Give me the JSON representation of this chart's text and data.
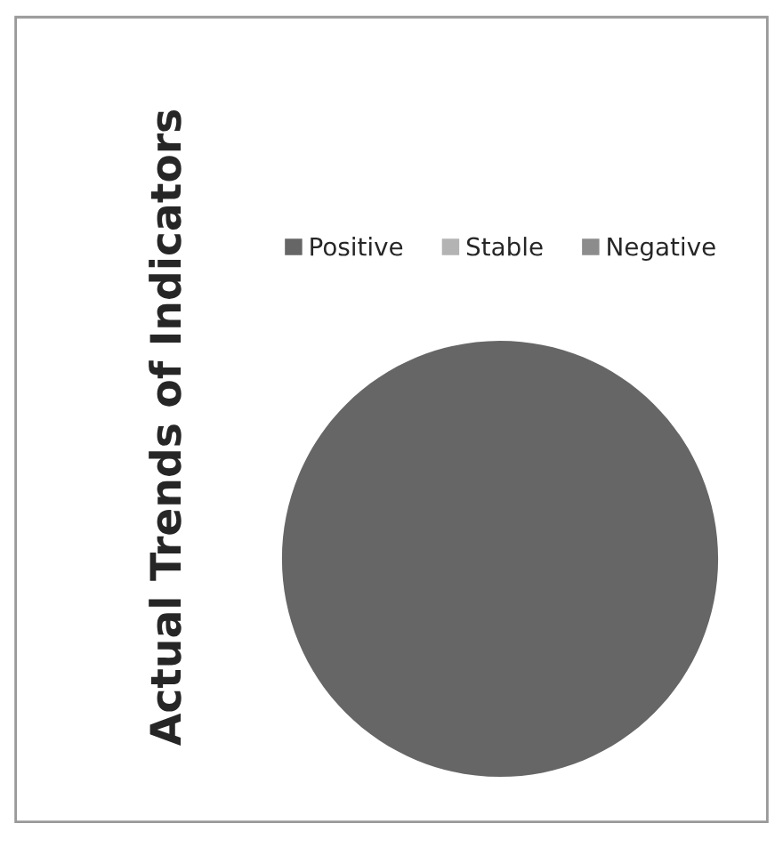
{
  "chart_data": {
    "type": "pie",
    "title": "Actual Trends of Indicators",
    "categories": [
      "Positive",
      "Stable",
      "Negative"
    ],
    "values": [
      100,
      0,
      0
    ],
    "colors": [
      "#666666",
      "#b3b3b3",
      "#8c8c8c"
    ],
    "legend": "top"
  }
}
